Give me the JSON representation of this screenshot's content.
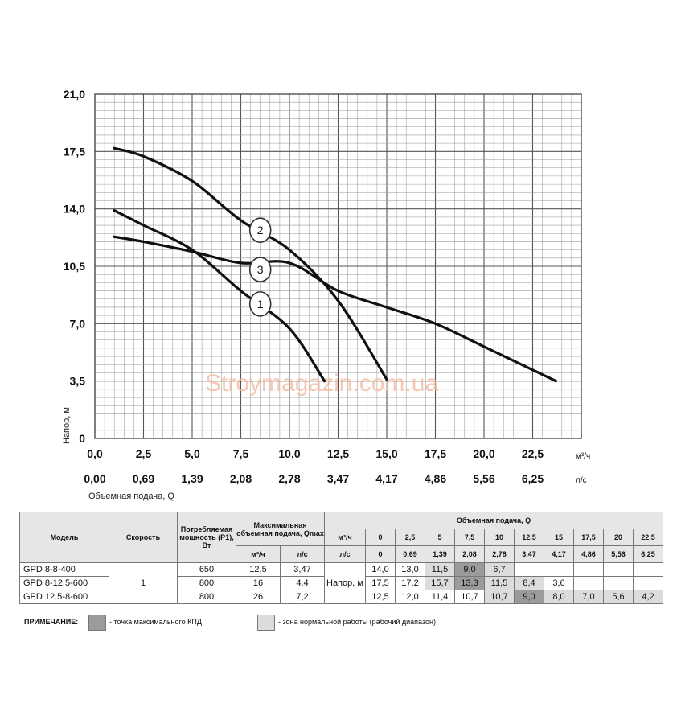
{
  "chart_data": {
    "type": "line",
    "ylabel": "Напор, м",
    "xlabel": "Объемная подача, Q",
    "x_unit_primary": "м³/ч",
    "x_unit_secondary": "л/с",
    "xlim": [
      0,
      25
    ],
    "ylim": [
      0,
      21
    ],
    "grid": true,
    "x_ticks_primary": [
      "0,0",
      "2,5",
      "5,0",
      "7,5",
      "10,0",
      "12,5",
      "15,0",
      "17,5",
      "20,0",
      "22,5"
    ],
    "x_ticks_secondary": [
      "0,00",
      "0,69",
      "1,39",
      "2,08",
      "2,78",
      "3,47",
      "4,17",
      "4,86",
      "5,56",
      "6,25"
    ],
    "y_ticks": [
      "0",
      "3,5",
      "7,0",
      "10,5",
      "14,0",
      "17,5",
      "21,0"
    ],
    "series": [
      {
        "name": "1",
        "points": [
          [
            1,
            13.9
          ],
          [
            2.5,
            13.0
          ],
          [
            5,
            11.5
          ],
          [
            7.5,
            9.0
          ],
          [
            10,
            6.7
          ],
          [
            11.8,
            3.5
          ]
        ]
      },
      {
        "name": "2",
        "points": [
          [
            1,
            17.7
          ],
          [
            2.5,
            17.2
          ],
          [
            5,
            15.7
          ],
          [
            7.5,
            13.3
          ],
          [
            10,
            11.5
          ],
          [
            12.5,
            8.4
          ],
          [
            15,
            3.6
          ]
        ]
      },
      {
        "name": "3",
        "points": [
          [
            1,
            12.3
          ],
          [
            2.5,
            12.0
          ],
          [
            5,
            11.4
          ],
          [
            7.5,
            10.7
          ],
          [
            10,
            10.7
          ],
          [
            12.5,
            9.0
          ],
          [
            15,
            8.0
          ],
          [
            17.5,
            7.0
          ],
          [
            20,
            5.6
          ],
          [
            23.7,
            3.5
          ]
        ]
      }
    ],
    "curve_labels": [
      {
        "text": "1",
        "x": 8.5,
        "y": 8.2
      },
      {
        "text": "2",
        "x": 8.5,
        "y": 12.7
      },
      {
        "text": "3",
        "x": 8.5,
        "y": 10.3
      }
    ]
  },
  "watermark": "Stroymagazin.com.ua",
  "table": {
    "headers": {
      "model": "Модель",
      "speed": "Скорость",
      "power": "Потребляемая мощность (P1), Вт",
      "qmax": "Максимальная объемная подача, Qmax",
      "qmax_m3h": "м³/ч",
      "qmax_ls": "л/с",
      "flow": "Объемная подача, Q",
      "unit_m3h": "м³/ч",
      "unit_ls": "л/с",
      "flow_m3h": [
        "0",
        "2,5",
        "5",
        "7,5",
        "10",
        "12,5",
        "15",
        "17,5",
        "20",
        "22,5"
      ],
      "flow_ls": [
        "0",
        "0,69",
        "1,39",
        "2,08",
        "2,78",
        "3,47",
        "4,17",
        "4,86",
        "5,56",
        "6,25"
      ]
    },
    "speed_value": "1",
    "head_label": "Напор, м",
    "rows": [
      {
        "model": "GPD 8-8-400",
        "power": "650",
        "qmax_m3h": "12,5",
        "qmax_ls": "3,47",
        "head": [
          "14,0",
          "13,0",
          "11,5",
          "9,0",
          "6,7",
          "",
          "",
          "",
          "",
          ""
        ]
      },
      {
        "model": "GPD 8-12.5-600",
        "power": "800",
        "qmax_m3h": "16",
        "qmax_ls": "4,4",
        "head": [
          "17,5",
          "17,2",
          "15,7",
          "13,3",
          "11,5",
          "8,4",
          "3,6",
          "",
          "",
          ""
        ]
      },
      {
        "model": "GPD 12.5-8-600",
        "power": "800",
        "qmax_m3h": "26",
        "qmax_ls": "7,2",
        "head": [
          "12,5",
          "12,0",
          "11,4",
          "10,7",
          "10,7",
          "9,0",
          "8,0",
          "7,0",
          "5,6",
          "4,2"
        ]
      }
    ],
    "highlight_max_efficiency": [
      [
        0,
        3
      ],
      [
        1,
        3
      ],
      [
        2,
        5
      ]
    ],
    "highlight_working_range": [
      [
        0,
        2
      ],
      [
        0,
        4
      ],
      [
        1,
        2
      ],
      [
        1,
        4
      ],
      [
        1,
        5
      ],
      [
        2,
        4
      ],
      [
        2,
        6
      ],
      [
        2,
        7
      ],
      [
        2,
        8
      ],
      [
        2,
        9
      ]
    ]
  },
  "legend": {
    "note_label": "ПРИМЕЧАНИЕ:",
    "max_efficiency": "- точка максимального КПД",
    "working_range": "- зона нормальной работы (рабочий диапазон)"
  }
}
